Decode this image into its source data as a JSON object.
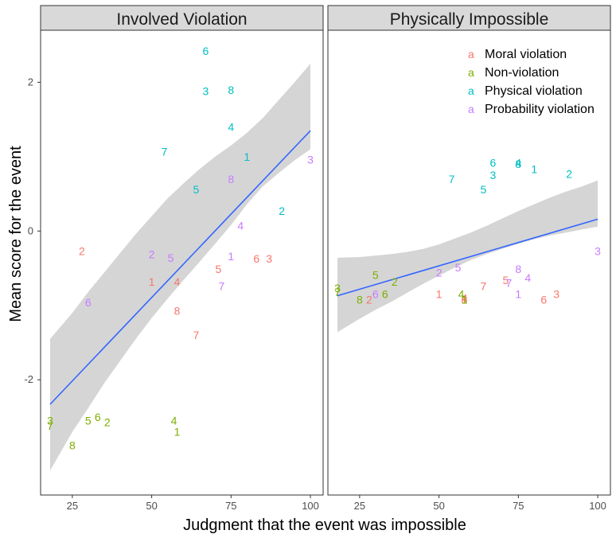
{
  "chart_data": {
    "type": "scatter",
    "xlabel": "Judgment that the event was impossible",
    "ylabel": "Mean score for the event",
    "xlim": [
      15,
      104
    ],
    "ylim": [
      -3.55,
      2.7
    ],
    "x_ticks": [
      25,
      50,
      75,
      100
    ],
    "y_ticks": [
      -2,
      0,
      2
    ],
    "grid": false,
    "legend_position": "top-right",
    "colors": {
      "Moral violation": "#F8766D",
      "Non-violation": "#7CAE00",
      "Physical violation": "#00BFC4",
      "Probability violation": "#C77CFF",
      "fit_line": "#3366FF",
      "ribbon": "#d3d3d3"
    },
    "legend": [
      {
        "key": "a",
        "label": "Moral violation",
        "series": "Moral violation"
      },
      {
        "key": "a",
        "label": "Non-violation",
        "series": "Non-violation"
      },
      {
        "key": "a",
        "label": "Physical violation",
        "series": "Physical violation"
      },
      {
        "key": "a",
        "label": "Probability violation",
        "series": "Probability violation"
      }
    ],
    "panels": [
      {
        "title": "Involved Violation",
        "fit": {
          "x": [
            18,
            100
          ],
          "y": [
            -2.33,
            1.35
          ]
        },
        "ribbon_upper": [
          [
            18,
            -1.45
          ],
          [
            25,
            -1.1
          ],
          [
            30,
            -0.82
          ],
          [
            35,
            -0.56
          ],
          [
            40,
            -0.3
          ],
          [
            45,
            -0.04
          ],
          [
            50,
            0.2
          ],
          [
            55,
            0.44
          ],
          [
            60,
            0.64
          ],
          [
            65,
            0.83
          ],
          [
            70,
            1.0
          ],
          [
            75,
            1.15
          ],
          [
            80,
            1.32
          ],
          [
            85,
            1.52
          ],
          [
            90,
            1.76
          ],
          [
            95,
            2.0
          ],
          [
            100,
            2.25
          ]
        ],
        "ribbon_lower": [
          [
            18,
            -3.22
          ],
          [
            25,
            -2.7
          ],
          [
            30,
            -2.38
          ],
          [
            35,
            -2.05
          ],
          [
            40,
            -1.75
          ],
          [
            45,
            -1.45
          ],
          [
            50,
            -1.17
          ],
          [
            55,
            -0.91
          ],
          [
            60,
            -0.66
          ],
          [
            65,
            -0.42
          ],
          [
            70,
            -0.17
          ],
          [
            75,
            0.08
          ],
          [
            80,
            0.36
          ],
          [
            85,
            0.6
          ],
          [
            90,
            0.78
          ],
          [
            95,
            0.95
          ],
          [
            100,
            1.1
          ]
        ],
        "points": [
          {
            "label": "1",
            "series": "Moral violation",
            "x": 50,
            "y": -0.68
          },
          {
            "label": "2",
            "series": "Moral violation",
            "x": 28,
            "y": -0.27
          },
          {
            "label": "3",
            "series": "Moral violation",
            "x": 87,
            "y": -0.37
          },
          {
            "label": "4",
            "series": "Moral violation",
            "x": 58,
            "y": -0.68
          },
          {
            "label": "5",
            "series": "Moral violation",
            "x": 71,
            "y": -0.51
          },
          {
            "label": "6",
            "series": "Moral violation",
            "x": 83,
            "y": -0.37
          },
          {
            "label": "7",
            "series": "Moral violation",
            "x": 64,
            "y": -1.4
          },
          {
            "label": "8",
            "series": "Moral violation",
            "x": 58,
            "y": -1.07
          },
          {
            "label": "1",
            "series": "Non-violation",
            "x": 58,
            "y": -2.7
          },
          {
            "label": "2",
            "series": "Non-violation",
            "x": 36,
            "y": -2.57
          },
          {
            "label": "3",
            "series": "Non-violation",
            "x": 18,
            "y": -2.55
          },
          {
            "label": "4",
            "series": "Non-violation",
            "x": 57,
            "y": -2.55
          },
          {
            "label": "5",
            "series": "Non-violation",
            "x": 30,
            "y": -2.55
          },
          {
            "label": "6",
            "series": "Non-violation",
            "x": 33,
            "y": -2.5
          },
          {
            "label": "7",
            "series": "Non-violation",
            "x": 18,
            "y": -2.62
          },
          {
            "label": "8",
            "series": "Non-violation",
            "x": 25,
            "y": -2.88
          },
          {
            "label": "1",
            "series": "Physical violation",
            "x": 80,
            "y": 1.0
          },
          {
            "label": "2",
            "series": "Physical violation",
            "x": 91,
            "y": 0.27
          },
          {
            "label": "3",
            "series": "Physical violation",
            "x": 67,
            "y": 1.88
          },
          {
            "label": "4",
            "series": "Physical violation",
            "x": 75,
            "y": 1.4
          },
          {
            "label": "5",
            "series": "Physical violation",
            "x": 64,
            "y": 0.56
          },
          {
            "label": "6",
            "series": "Physical violation",
            "x": 67,
            "y": 2.42
          },
          {
            "label": "7",
            "series": "Physical violation",
            "x": 54,
            "y": 1.07
          },
          {
            "label": "8",
            "series": "Physical violation",
            "x": 75,
            "y": 1.9
          },
          {
            "label": "1",
            "series": "Probability violation",
            "x": 75,
            "y": -0.34
          },
          {
            "label": "2",
            "series": "Probability violation",
            "x": 50,
            "y": -0.31
          },
          {
            "label": "3",
            "series": "Probability violation",
            "x": 100,
            "y": 0.96
          },
          {
            "label": "4",
            "series": "Probability violation",
            "x": 78,
            "y": 0.07
          },
          {
            "label": "5",
            "series": "Probability violation",
            "x": 56,
            "y": -0.36
          },
          {
            "label": "6",
            "series": "Probability violation",
            "x": 30,
            "y": -0.96
          },
          {
            "label": "7",
            "series": "Probability violation",
            "x": 72,
            "y": -0.74
          },
          {
            "label": "8",
            "series": "Probability violation",
            "x": 75,
            "y": 0.7
          }
        ]
      },
      {
        "title": "Physically Impossible",
        "fit": {
          "x": [
            18,
            100
          ],
          "y": [
            -0.87,
            0.16
          ]
        },
        "ribbon_upper": [
          [
            18,
            -0.36
          ],
          [
            25,
            -0.35
          ],
          [
            30,
            -0.33
          ],
          [
            35,
            -0.31
          ],
          [
            40,
            -0.28
          ],
          [
            45,
            -0.24
          ],
          [
            50,
            -0.18
          ],
          [
            55,
            -0.1
          ],
          [
            60,
            -0.02
          ],
          [
            65,
            0.07
          ],
          [
            70,
            0.17
          ],
          [
            75,
            0.27
          ],
          [
            80,
            0.36
          ],
          [
            85,
            0.45
          ],
          [
            90,
            0.53
          ],
          [
            95,
            0.6
          ],
          [
            100,
            0.68
          ]
        ],
        "ribbon_lower": [
          [
            18,
            -1.36
          ],
          [
            25,
            -1.18
          ],
          [
            30,
            -1.06
          ],
          [
            35,
            -0.95
          ],
          [
            40,
            -0.83
          ],
          [
            45,
            -0.71
          ],
          [
            50,
            -0.6
          ],
          [
            55,
            -0.49
          ],
          [
            60,
            -0.39
          ],
          [
            65,
            -0.31
          ],
          [
            70,
            -0.24
          ],
          [
            75,
            -0.17
          ],
          [
            80,
            -0.11
          ],
          [
            85,
            -0.06
          ],
          [
            90,
            -0.02
          ],
          [
            95,
            0.02
          ],
          [
            100,
            0.06
          ]
        ],
        "points": [
          {
            "label": "1",
            "series": "Moral violation",
            "x": 50,
            "y": -0.85
          },
          {
            "label": "2",
            "series": "Moral violation",
            "x": 28,
            "y": -0.92
          },
          {
            "label": "3",
            "series": "Moral violation",
            "x": 87,
            "y": -0.85
          },
          {
            "label": "4",
            "series": "Moral violation",
            "x": 58,
            "y": -0.9
          },
          {
            "label": "5",
            "series": "Moral violation",
            "x": 71,
            "y": -0.66
          },
          {
            "label": "6",
            "series": "Moral violation",
            "x": 83,
            "y": -0.92
          },
          {
            "label": "7",
            "series": "Moral violation",
            "x": 64,
            "y": -0.74
          },
          {
            "label": "8",
            "series": "Moral violation",
            "x": 58,
            "y": -0.92
          },
          {
            "label": "1",
            "series": "Non-violation",
            "x": 58,
            "y": -0.92
          },
          {
            "label": "2",
            "series": "Non-violation",
            "x": 36,
            "y": -0.68
          },
          {
            "label": "3",
            "series": "Non-violation",
            "x": 18,
            "y": -0.77
          },
          {
            "label": "4",
            "series": "Non-violation",
            "x": 57,
            "y": -0.85
          },
          {
            "label": "5",
            "series": "Non-violation",
            "x": 30,
            "y": -0.59
          },
          {
            "label": "6",
            "series": "Non-violation",
            "x": 33,
            "y": -0.85
          },
          {
            "label": "7",
            "series": "Non-violation",
            "x": 18,
            "y": -0.82
          },
          {
            "label": "8",
            "series": "Non-violation",
            "x": 25,
            "y": -0.92
          },
          {
            "label": "1",
            "series": "Physical violation",
            "x": 80,
            "y": 0.83
          },
          {
            "label": "2",
            "series": "Physical violation",
            "x": 91,
            "y": 0.77
          },
          {
            "label": "3",
            "series": "Physical violation",
            "x": 67,
            "y": 0.75
          },
          {
            "label": "4",
            "series": "Physical violation",
            "x": 75,
            "y": 0.92
          },
          {
            "label": "5",
            "series": "Physical violation",
            "x": 64,
            "y": 0.56
          },
          {
            "label": "6",
            "series": "Physical violation",
            "x": 67,
            "y": 0.92
          },
          {
            "label": "7",
            "series": "Physical violation",
            "x": 54,
            "y": 0.7
          },
          {
            "label": "8",
            "series": "Physical violation",
            "x": 75,
            "y": 0.9
          },
          {
            "label": "1",
            "series": "Probability violation",
            "x": 75,
            "y": -0.85
          },
          {
            "label": "2",
            "series": "Probability violation",
            "x": 50,
            "y": -0.56
          },
          {
            "label": "3",
            "series": "Probability violation",
            "x": 100,
            "y": -0.27
          },
          {
            "label": "4",
            "series": "Probability violation",
            "x": 78,
            "y": -0.63
          },
          {
            "label": "5",
            "series": "Probability violation",
            "x": 56,
            "y": -0.49
          },
          {
            "label": "6",
            "series": "Probability violation",
            "x": 30,
            "y": -0.85
          },
          {
            "label": "7",
            "series": "Probability violation",
            "x": 72,
            "y": -0.7
          },
          {
            "label": "8",
            "series": "Probability violation",
            "x": 75,
            "y": -0.51
          }
        ]
      }
    ]
  }
}
